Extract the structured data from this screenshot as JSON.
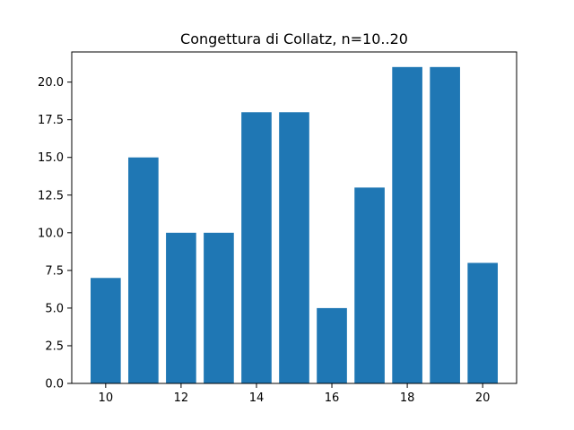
{
  "chart_data": {
    "type": "bar",
    "title": "Congettura di Collatz, n=10..20",
    "xlabel": "",
    "ylabel": "",
    "x": [
      10,
      11,
      12,
      13,
      14,
      15,
      16,
      17,
      18,
      19,
      20
    ],
    "values": [
      7,
      15,
      10,
      10,
      18,
      18,
      5,
      13,
      21,
      21,
      8
    ],
    "xlim": [
      9.1,
      20.9
    ],
    "ylim": [
      0,
      22
    ],
    "xticks": [
      10,
      12,
      14,
      16,
      18,
      20
    ],
    "yticks": [
      0.0,
      2.5,
      5.0,
      7.5,
      10.0,
      12.5,
      15.0,
      17.5,
      20.0
    ],
    "ytick_labels": [
      "0.0",
      "2.5",
      "5.0",
      "7.5",
      "10.0",
      "12.5",
      "15.0",
      "17.5",
      "20.0"
    ],
    "bar_width": 0.8,
    "grid": false,
    "legend": "none",
    "bar_color": "#1f77b4"
  }
}
